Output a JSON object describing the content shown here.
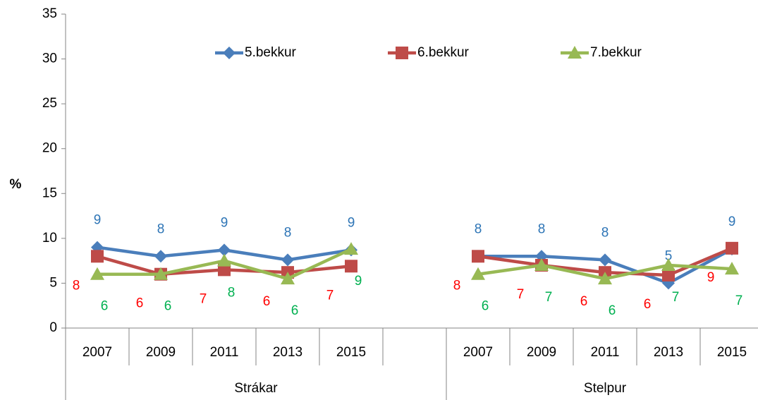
{
  "chart_data": {
    "type": "line",
    "y_label": "%",
    "categories": [
      "2007",
      "2009",
      "2011",
      "2013",
      "2015",
      null,
      "2007",
      "2009",
      "2011",
      "2013",
      "2015"
    ],
    "groups": [
      {
        "name": "Strákar",
        "count": 6
      },
      {
        "name": "Stelpur",
        "count": 5
      }
    ],
    "series": [
      {
        "name": "5.bekkur",
        "color": "#4a7ebb",
        "label_color": "#2e75b6",
        "marker": "diamond",
        "values": [
          9,
          8,
          8.7,
          7.6,
          8.7,
          null,
          8,
          8,
          7.6,
          5,
          8.8
        ],
        "value_labels": [
          "9",
          "8",
          "9",
          "8",
          "9",
          null,
          "8",
          "8",
          "8",
          "5",
          "9"
        ]
      },
      {
        "name": "6.bekkur",
        "color": "#be4b48",
        "label_color": "#ff0000",
        "marker": "square",
        "values": [
          8,
          6,
          6.5,
          6.2,
          6.9,
          null,
          8,
          7,
          6.2,
          5.9,
          8.9
        ],
        "value_labels": [
          "8",
          "6",
          "7",
          "6",
          "7",
          null,
          "8",
          "7",
          "6",
          "6",
          "9"
        ]
      },
      {
        "name": "7.bekkur",
        "color": "#98b954",
        "label_color": "#00b050",
        "marker": "triangle",
        "values": [
          6,
          6,
          7.5,
          5.5,
          8.8,
          null,
          6,
          7,
          5.5,
          7,
          6.6
        ],
        "value_labels": [
          "6",
          "6",
          "8",
          "6",
          "9",
          null,
          "6",
          "7",
          "6",
          "7",
          "7"
        ]
      }
    ],
    "ylim": [
      0,
      35
    ],
    "yticks": [
      0,
      5,
      10,
      15,
      20,
      25,
      30,
      35
    ],
    "grid": false,
    "legend": "top"
  }
}
